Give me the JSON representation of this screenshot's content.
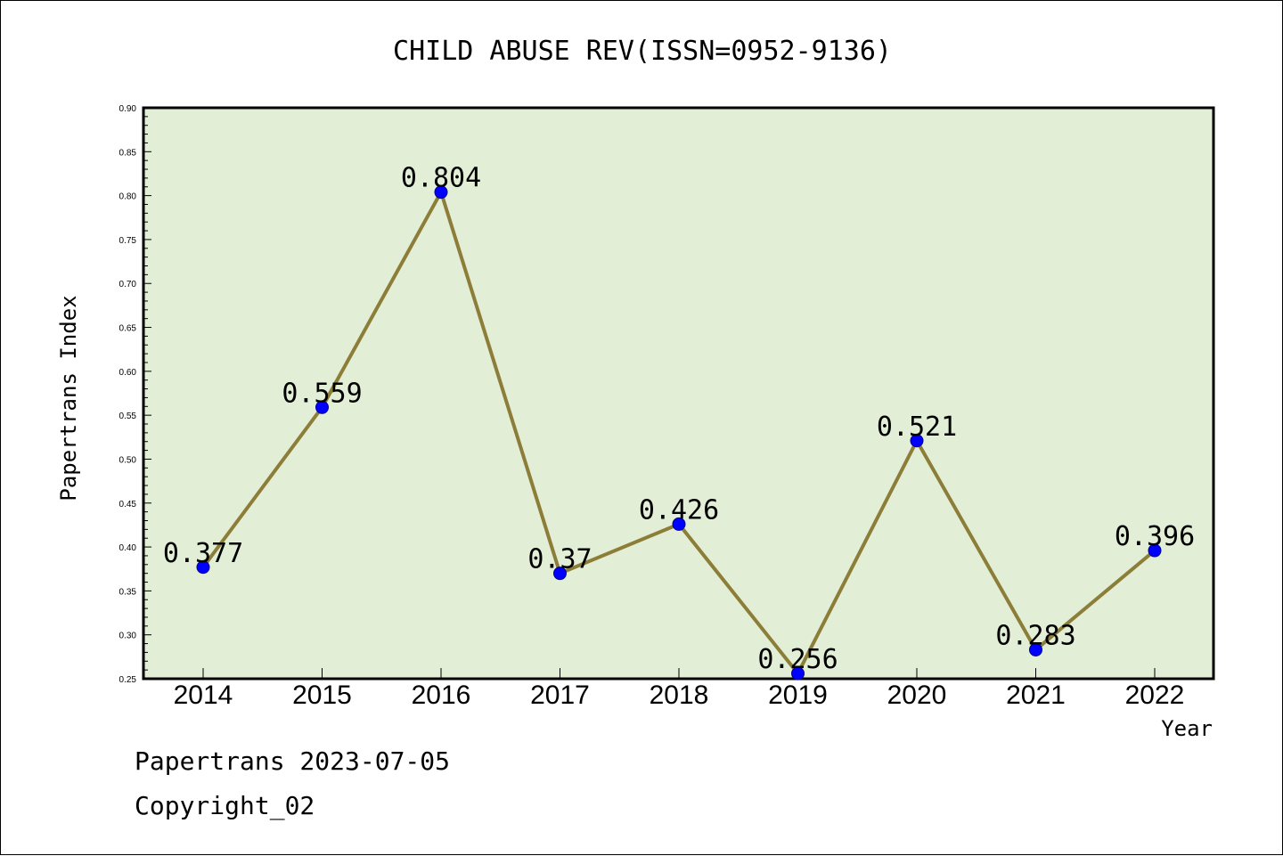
{
  "chart_data": {
    "type": "line",
    "title": "CHILD ABUSE REV(ISSN=0952-9136)",
    "xlabel": "Year",
    "ylabel": "Papertrans Index",
    "ylim": [
      0.25,
      0.9
    ],
    "yticks": [
      "0.25",
      "0.30",
      "0.35",
      "0.40",
      "0.45",
      "0.50",
      "0.55",
      "0.60",
      "0.65",
      "0.70",
      "0.75",
      "0.80",
      "0.85",
      "0.90"
    ],
    "categories": [
      "2014",
      "2015",
      "2016",
      "2017",
      "2018",
      "2019",
      "2020",
      "2021",
      "2022"
    ],
    "values": [
      0.377,
      0.559,
      0.804,
      0.37,
      0.426,
      0.256,
      0.521,
      0.283,
      0.396
    ],
    "data_labels": [
      "0.377",
      "0.559",
      "0.804",
      "0.37",
      "0.426",
      "0.256",
      "0.521",
      "0.283",
      "0.396"
    ],
    "grid": false,
    "colors": {
      "plot_background": "#e2efd6",
      "line": "#8c7d38",
      "marker": "#0000ff",
      "marker_edge": "#00008b"
    }
  },
  "footer": {
    "line1": "Papertrans 2023-07-05",
    "line2": "Copyright_02"
  }
}
